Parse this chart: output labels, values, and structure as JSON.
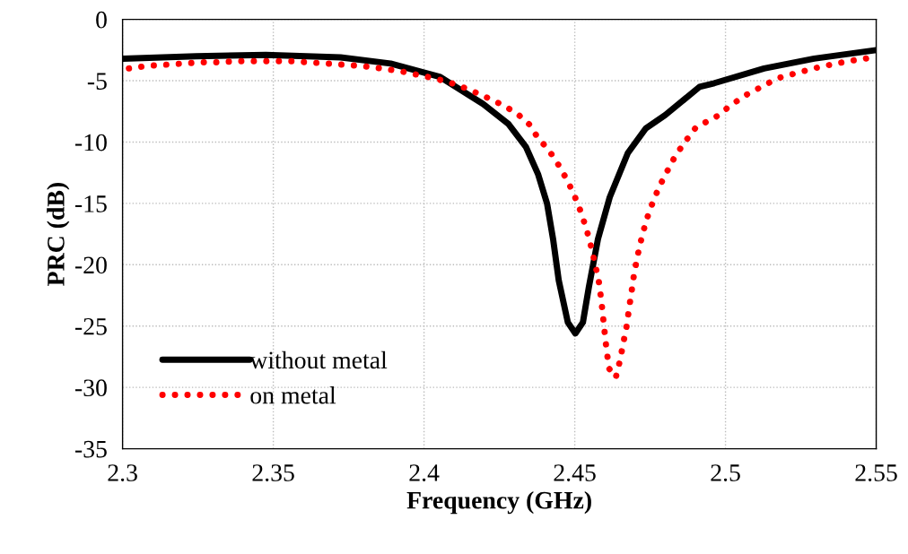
{
  "chart_data": {
    "type": "line",
    "xlabel": "Frequency (GHz)",
    "ylabel": "PRC (dB)",
    "xlim": [
      2.3,
      2.55
    ],
    "xticks": [
      2.3,
      2.35,
      2.4,
      2.45,
      2.5,
      2.55
    ],
    "ylim": [
      -35,
      0
    ],
    "yticks": [
      -35,
      -30,
      -25,
      -20,
      -15,
      -10,
      -5,
      0
    ],
    "grid": true,
    "legend": "bottom left",
    "marker": "none",
    "series": [
      {
        "name": "without metal",
        "color": "#000000",
        "line_style": "solid",
        "x": [
          2.3,
          2.3244,
          2.3475,
          2.3723,
          2.3889,
          2.4054,
          2.4196,
          2.4279,
          2.4338,
          2.4378,
          2.4408,
          2.4428,
          2.4447,
          2.4477,
          2.4502,
          2.4527,
          2.4547,
          2.4577,
          2.4616,
          2.4676,
          2.4735,
          2.48,
          2.4914,
          2.4963,
          2.5128,
          2.5294,
          2.55
        ],
        "values": [
          -3.2,
          -3.0,
          -2.9,
          -3.1,
          -3.6,
          -4.7,
          -6.9,
          -8.5,
          -10.4,
          -12.6,
          -15.0,
          -17.9,
          -21.3,
          -24.7,
          -25.6,
          -24.7,
          -21.8,
          -17.9,
          -14.5,
          -10.9,
          -8.9,
          -7.8,
          -5.5,
          -5.2,
          -4.0,
          -3.2,
          -2.5
        ]
      },
      {
        "name": "on metal",
        "color": "#ff0000",
        "line_style": "dotted",
        "x": [
          2.3021,
          2.3078,
          2.314,
          2.3197,
          2.3259,
          2.3318,
          2.3378,
          2.3439,
          2.3498,
          2.3558,
          2.3617,
          2.3677,
          2.3736,
          2.3796,
          2.3857,
          2.3917,
          2.3975,
          2.4034,
          2.4092,
          2.4148,
          2.4203,
          2.4254,
          2.4305,
          2.4351,
          2.4376,
          2.4415,
          2.4447,
          2.4477,
          2.4501,
          2.4522,
          2.454,
          2.4555,
          2.4568,
          2.458,
          2.4588,
          2.4594,
          2.46,
          2.4606,
          2.4615,
          2.4636,
          2.465,
          2.4661,
          2.4672,
          2.468,
          2.4689,
          2.4697,
          2.4708,
          2.4721,
          2.4737,
          2.4756,
          2.4779,
          2.4804,
          2.4832,
          2.4865,
          2.4902,
          2.4971,
          2.5018,
          2.5065,
          2.5119,
          2.5173,
          2.5232,
          2.5292,
          2.5348,
          2.5408,
          2.5464,
          2.55
        ],
        "values": [
          -4.0,
          -3.8,
          -3.7,
          -3.6,
          -3.5,
          -3.5,
          -3.4,
          -3.4,
          -3.4,
          -3.4,
          -3.5,
          -3.6,
          -3.7,
          -3.8,
          -4.0,
          -4.2,
          -4.5,
          -4.8,
          -5.2,
          -5.7,
          -6.3,
          -6.9,
          -7.6,
          -8.6,
          -9.6,
          -10.7,
          -11.9,
          -13.2,
          -14.5,
          -15.8,
          -17.2,
          -18.6,
          -20.0,
          -21.4,
          -22.9,
          -24.3,
          -25.7,
          -27.1,
          -28.5,
          -29.2,
          -27.8,
          -26.4,
          -25.0,
          -23.6,
          -22.1,
          -20.7,
          -19.3,
          -17.9,
          -16.4,
          -15.1,
          -13.7,
          -12.5,
          -11.2,
          -10.0,
          -8.8,
          -7.9,
          -7.0,
          -6.2,
          -5.5,
          -4.8,
          -4.4,
          -4.0,
          -3.7,
          -3.4,
          -3.2,
          -3.0
        ]
      }
    ]
  }
}
